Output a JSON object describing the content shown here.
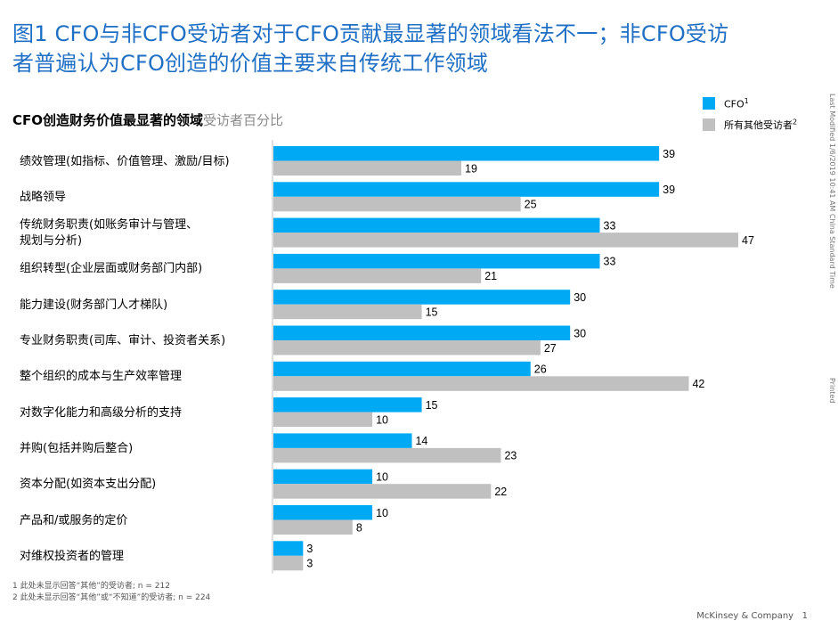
{
  "header": {
    "title_line1": "图1 CFO与非CFO受访者对于CFO贡献最显著的领域看法不一；非CFO受访",
    "title_line2": "者普遍认为CFO创造的价值主要来自传统工作领域"
  },
  "side_notes": {
    "modified": "Last Modified 1/6/2019 10:41 AM China Standard Time",
    "printed": "Printed"
  },
  "footnotes": [
    "1  此处未显示回答“其他”的受访者; n = 212",
    "2  此处未显示回答“其他”或“不知道”的受访者; n = 224"
  ],
  "brand": {
    "company": "McKinsey & Company",
    "page": "1"
  },
  "colors": {
    "cfo": "#00a9f4",
    "others": "#c0c0c0",
    "axis": "#bfbfbf",
    "title": "#1f6fc5"
  },
  "chart_data": {
    "type": "bar",
    "orientation": "horizontal",
    "title": "CFO创造财务价值最显著的领域",
    "unit_label": "受访者百分比",
    "categories": [
      "绩效管理(如指标、价值管理、激励/目标)",
      "战略领导",
      "传统财务职责(如账务审计与管理、\n规划与分析)",
      "组织转型(企业层面或财务部门内部)",
      "能力建设(财务部门人才梯队)",
      "专业财务职责(司库、审计、投资者关系)",
      "整个组织的成本与生产效率管理",
      "对数字化能力和高级分析的支持",
      "并购(包括并购后整合)",
      "资本分配(如资本支出分配)",
      "产品和/或服务的定价",
      "对维权投资者的管理"
    ],
    "series": [
      {
        "name": "CFO",
        "sup": "1",
        "values": [
          39,
          39,
          33,
          33,
          30,
          30,
          26,
          15,
          14,
          10,
          10,
          3
        ]
      },
      {
        "name": "所有其他受访者",
        "sup": "2",
        "values": [
          19,
          25,
          47,
          21,
          15,
          27,
          42,
          10,
          23,
          22,
          8,
          3
        ]
      }
    ],
    "xlim": [
      0,
      47
    ],
    "data_labels": true,
    "legend": "top-right",
    "grid": false
  }
}
